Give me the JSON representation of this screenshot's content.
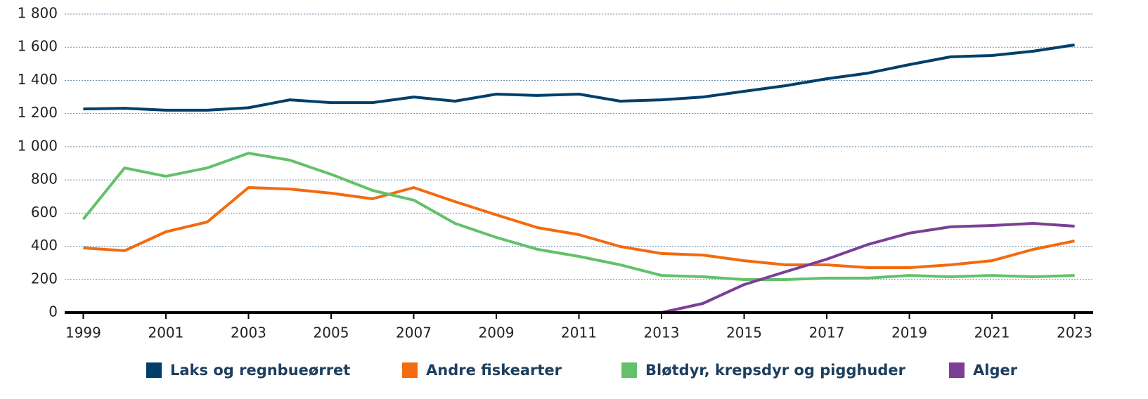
{
  "chart_data": {
    "type": "line",
    "x": [
      1999,
      2000,
      2001,
      2002,
      2003,
      2004,
      2005,
      2006,
      2007,
      2008,
      2009,
      2010,
      2011,
      2012,
      2013,
      2014,
      2015,
      2016,
      2017,
      2018,
      2019,
      2020,
      2021,
      2022,
      2023
    ],
    "xlim": [
      1998.55,
      2023.45
    ],
    "xticks": [
      1999,
      2001,
      2003,
      2005,
      2007,
      2009,
      2011,
      2013,
      2015,
      2017,
      2019,
      2021,
      2023
    ],
    "ylim": [
      0,
      1800
    ],
    "yticks": [
      0,
      200,
      400,
      600,
      800,
      {
        "value": 1000,
        "label": "1 000"
      },
      {
        "value": 1200,
        "label": "1 200"
      },
      {
        "value": 1400,
        "label": "1 400"
      },
      {
        "value": 1600,
        "label": "1 600"
      },
      {
        "value": 1800,
        "label": "1 800"
      }
    ],
    "grid": true,
    "legend": "bottom",
    "series": [
      {
        "name": "Laks og regnbueørret",
        "color": "#003f6b",
        "values": [
          1228,
          1232,
          1220,
          1220,
          1235,
          1283,
          1266,
          1266,
          1300,
          1275,
          1317,
          1309,
          1317,
          1275,
          1283,
          1300,
          1334,
          1368,
          1410,
          1444,
          1495,
          1542,
          1550,
          1576,
          1614
        ]
      },
      {
        "name": "Andre fiskearter",
        "color": "#f26b0f",
        "values": [
          390,
          373,
          487,
          546,
          754,
          745,
          720,
          686,
          754,
          669,
          589,
          512,
          470,
          398,
          356,
          347,
          313,
          288,
          288,
          271,
          271,
          288,
          313,
          381,
          432
        ]
      },
      {
        "name": "Bløtdyr, krepsdyr og pigghuder",
        "color": "#63c16b",
        "values": [
          563,
          872,
          822,
          872,
          961,
          919,
          834,
          737,
          678,
          538,
          453,
          381,
          339,
          288,
          224,
          216,
          199,
          199,
          208,
          208,
          224,
          216,
          224,
          216,
          224
        ]
      },
      {
        "name": "Alger",
        "color": "#7b3f96",
        "values": [
          null,
          null,
          null,
          null,
          null,
          null,
          null,
          null,
          null,
          null,
          null,
          null,
          null,
          null,
          0,
          55,
          169,
          246,
          322,
          411,
          479,
          517,
          525,
          538,
          521
        ]
      }
    ]
  }
}
